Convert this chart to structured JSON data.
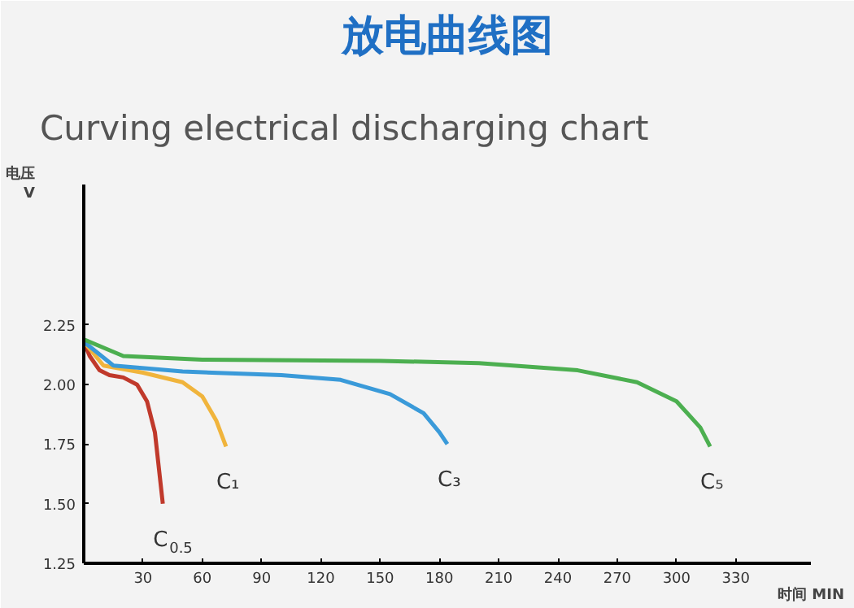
{
  "chart_data": {
    "type": "line",
    "title": "放电曲线图",
    "subtitle": "Curving electrical discharging chart",
    "xlabel": "时间 MIN",
    "ylabel": "电压 V",
    "xlim": [
      0,
      368
    ],
    "ylim": [
      1.25,
      2.84
    ],
    "xticks": [
      30,
      60,
      90,
      120,
      150,
      180,
      210,
      240,
      270,
      300,
      330
    ],
    "yticks": [
      1.25,
      {
        "value": 1.5,
        "label": "1.50"
      },
      1.75,
      {
        "value": 2.0,
        "label": "2.00"
      },
      2.25
    ],
    "grid": false,
    "marker": "none",
    "line_style": "solid",
    "series": [
      {
        "name": "C$_{0.5}$",
        "color": "#c0392b",
        "x": [
          0,
          3,
          8,
          13,
          20,
          27,
          32,
          36,
          38,
          40
        ],
        "values": [
          2.18,
          2.12,
          2.06,
          2.04,
          2.03,
          2.0,
          1.93,
          1.8,
          1.65,
          1.5
        ]
      },
      {
        "name": "C₁",
        "color": "#f0b43c",
        "x": [
          0,
          10,
          30,
          50,
          60,
          67,
          72
        ],
        "values": [
          2.18,
          2.08,
          2.05,
          2.01,
          1.95,
          1.85,
          1.74
        ]
      },
      {
        "name": "C₃",
        "color": "#3a9ad9",
        "x": [
          0,
          15,
          50,
          100,
          130,
          155,
          172,
          180,
          184
        ],
        "values": [
          2.18,
          2.08,
          2.055,
          2.04,
          2.02,
          1.96,
          1.88,
          1.8,
          1.75
        ]
      },
      {
        "name": "C₅",
        "color": "#4caf50",
        "x": [
          0,
          20,
          60,
          150,
          200,
          250,
          280,
          300,
          312,
          317
        ],
        "values": [
          2.19,
          2.12,
          2.105,
          2.1,
          2.09,
          2.06,
          2.01,
          1.93,
          1.82,
          1.74
        ]
      }
    ]
  }
}
